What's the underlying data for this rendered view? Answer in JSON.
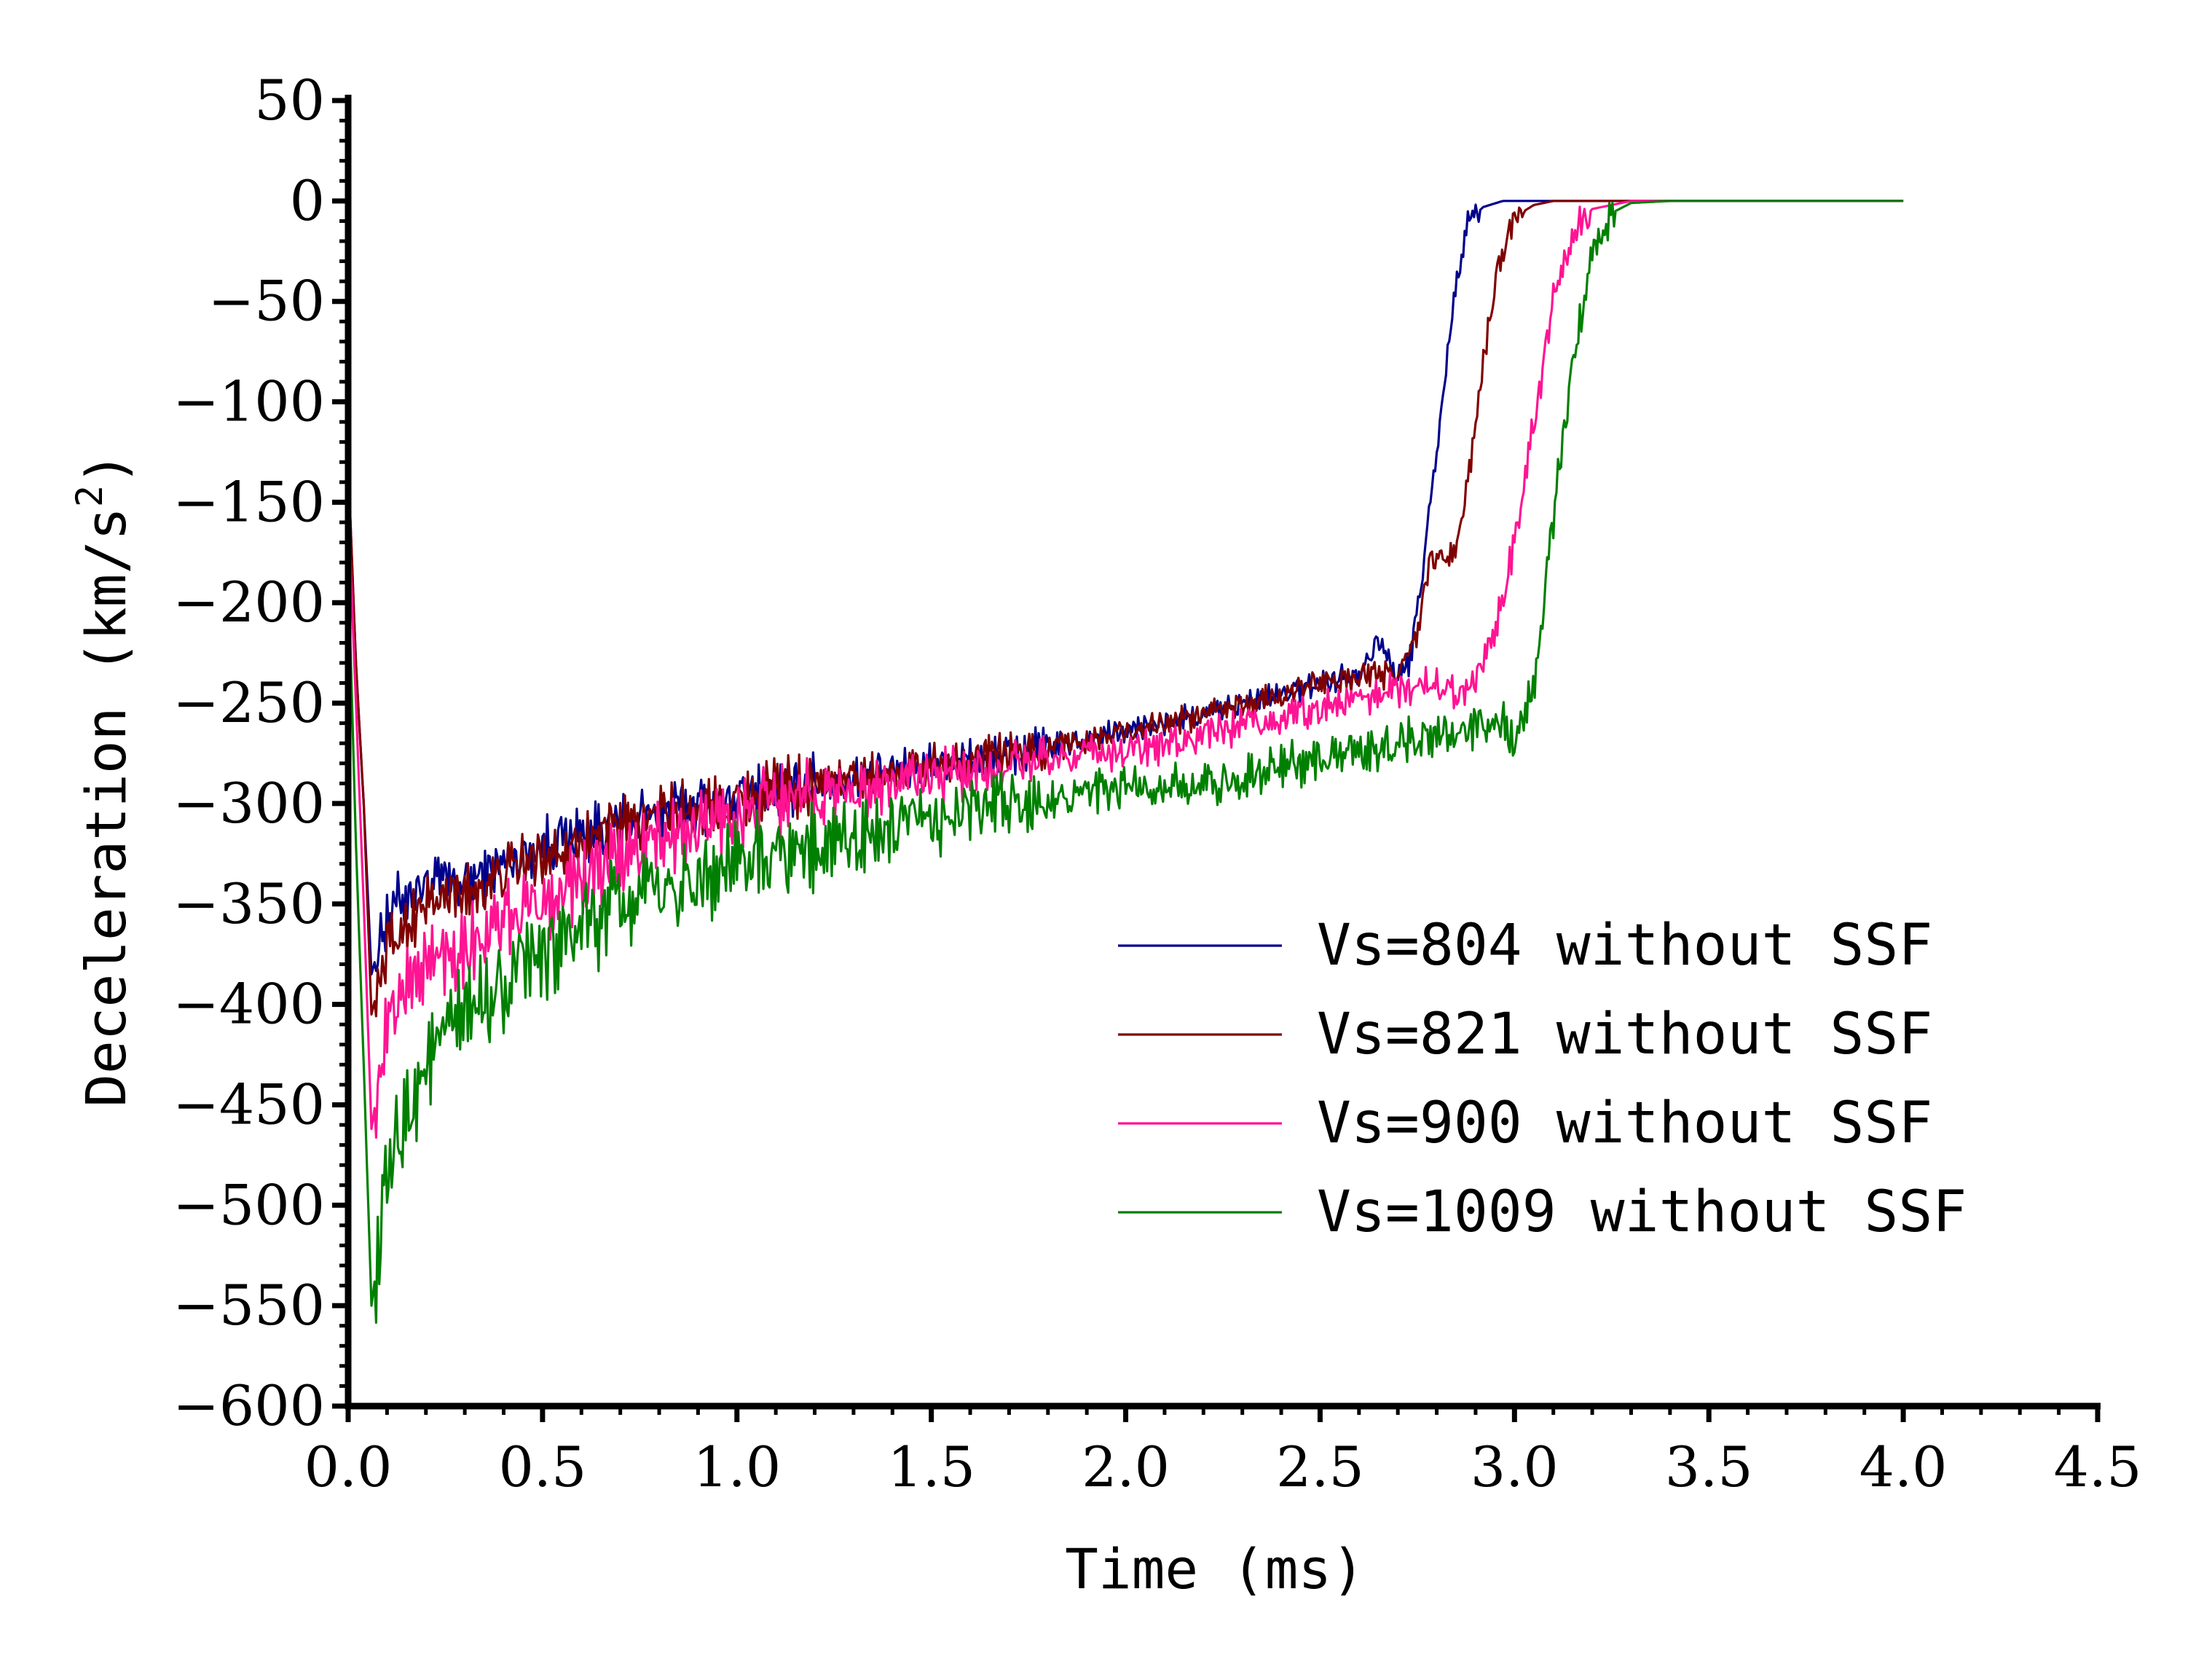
{
  "chart_data": {
    "type": "line",
    "title": "",
    "xlabel": "Time (ms)",
    "ylabel_main": "Deceleration (km/s",
    "ylabel_sup": "2",
    "ylabel_close": ")",
    "xlim": [
      0,
      4.5
    ],
    "ylim": [
      -600,
      50
    ],
    "xticks": [
      0,
      0.5,
      1.0,
      1.5,
      2.0,
      2.5,
      3.0,
      3.5,
      4.0,
      4.5
    ],
    "xtick_labels": [
      "0.0",
      "0.5",
      "1.0",
      "1.5",
      "2.0",
      "2.5",
      "3.0",
      "3.5",
      "4.0",
      "4.5"
    ],
    "yticks": [
      50,
      0,
      -50,
      -100,
      -150,
      -200,
      -250,
      -300,
      -350,
      -400,
      -450,
      -500,
      -550,
      -600
    ],
    "ytick_labels": [
      "50",
      "0",
      "-50",
      "-100",
      "-150",
      "-200",
      "-250",
      "-300",
      "-350",
      "-400",
      "-450",
      "-500",
      "-550",
      "-600"
    ],
    "legend_position": "center-right",
    "series": [
      {
        "name": "Vs=804 without SSF",
        "color": "#00008B",
        "noise": 12,
        "points": [
          [
            0,
            -130
          ],
          [
            0.02,
            -230
          ],
          [
            0.04,
            -300
          ],
          [
            0.06,
            -385
          ],
          [
            0.1,
            -355
          ],
          [
            0.15,
            -345
          ],
          [
            0.2,
            -340
          ],
          [
            0.3,
            -340
          ],
          [
            0.4,
            -330
          ],
          [
            0.5,
            -320
          ],
          [
            0.6,
            -315
          ],
          [
            0.7,
            -310
          ],
          [
            0.8,
            -305
          ],
          [
            0.9,
            -300
          ],
          [
            1.0,
            -298
          ],
          [
            1.1,
            -293
          ],
          [
            1.2,
            -290
          ],
          [
            1.3,
            -287
          ],
          [
            1.4,
            -284
          ],
          [
            1.5,
            -280
          ],
          [
            1.6,
            -278
          ],
          [
            1.7,
            -276
          ],
          [
            1.8,
            -272
          ],
          [
            1.9,
            -268
          ],
          [
            2.0,
            -264
          ],
          [
            2.1,
            -260
          ],
          [
            2.2,
            -256
          ],
          [
            2.3,
            -251
          ],
          [
            2.4,
            -246
          ],
          [
            2.5,
            -240
          ],
          [
            2.6,
            -234
          ],
          [
            2.65,
            -218
          ],
          [
            2.7,
            -238
          ],
          [
            2.73,
            -230
          ],
          [
            2.76,
            -190
          ],
          [
            2.79,
            -140
          ],
          [
            2.82,
            -90
          ],
          [
            2.85,
            -40
          ],
          [
            2.88,
            -10
          ],
          [
            2.92,
            -3
          ],
          [
            2.97,
            0
          ],
          [
            3.05,
            0
          ],
          [
            4.0,
            0
          ]
        ]
      },
      {
        "name": "Vs=821 without SSF",
        "color": "#800000",
        "noise": 12,
        "points": [
          [
            0,
            -130
          ],
          [
            0.02,
            -230
          ],
          [
            0.04,
            -300
          ],
          [
            0.06,
            -405
          ],
          [
            0.1,
            -372
          ],
          [
            0.15,
            -360
          ],
          [
            0.2,
            -350
          ],
          [
            0.3,
            -345
          ],
          [
            0.4,
            -335
          ],
          [
            0.5,
            -325
          ],
          [
            0.6,
            -318
          ],
          [
            0.7,
            -312
          ],
          [
            0.8,
            -306
          ],
          [
            0.9,
            -302
          ],
          [
            1.0,
            -298
          ],
          [
            1.1,
            -293
          ],
          [
            1.2,
            -290
          ],
          [
            1.3,
            -287
          ],
          [
            1.4,
            -284
          ],
          [
            1.5,
            -280
          ],
          [
            1.6,
            -278
          ],
          [
            1.7,
            -276
          ],
          [
            1.8,
            -272
          ],
          [
            1.9,
            -268
          ],
          [
            2.0,
            -264
          ],
          [
            2.1,
            -260
          ],
          [
            2.2,
            -256
          ],
          [
            2.3,
            -251
          ],
          [
            2.4,
            -246
          ],
          [
            2.5,
            -240
          ],
          [
            2.6,
            -236
          ],
          [
            2.7,
            -236
          ],
          [
            2.75,
            -215
          ],
          [
            2.78,
            -180
          ],
          [
            2.85,
            -175
          ],
          [
            2.88,
            -140
          ],
          [
            2.92,
            -80
          ],
          [
            2.96,
            -30
          ],
          [
            3.0,
            -8
          ],
          [
            3.05,
            -2
          ],
          [
            3.1,
            0
          ],
          [
            4.0,
            0
          ]
        ]
      },
      {
        "name": "Vs=900 without SSF",
        "color": "#FF1493",
        "noise": 16,
        "points": [
          [
            0,
            -150
          ],
          [
            0.02,
            -250
          ],
          [
            0.04,
            -350
          ],
          [
            0.06,
            -462
          ],
          [
            0.1,
            -410
          ],
          [
            0.15,
            -390
          ],
          [
            0.2,
            -380
          ],
          [
            0.3,
            -370
          ],
          [
            0.4,
            -360
          ],
          [
            0.5,
            -348
          ],
          [
            0.6,
            -338
          ],
          [
            0.7,
            -328
          ],
          [
            0.8,
            -318
          ],
          [
            0.9,
            -312
          ],
          [
            1.0,
            -305
          ],
          [
            1.1,
            -300
          ],
          [
            1.2,
            -297
          ],
          [
            1.3,
            -293
          ],
          [
            1.4,
            -290
          ],
          [
            1.5,
            -287
          ],
          [
            1.6,
            -284
          ],
          [
            1.7,
            -281
          ],
          [
            1.8,
            -278
          ],
          [
            1.9,
            -276
          ],
          [
            2.0,
            -274
          ],
          [
            2.1,
            -271
          ],
          [
            2.2,
            -266
          ],
          [
            2.3,
            -262
          ],
          [
            2.4,
            -258
          ],
          [
            2.5,
            -252
          ],
          [
            2.6,
            -248
          ],
          [
            2.7,
            -243
          ],
          [
            2.8,
            -240
          ],
          [
            2.85,
            -244
          ],
          [
            2.9,
            -238
          ],
          [
            2.95,
            -215
          ],
          [
            3.0,
            -170
          ],
          [
            3.05,
            -110
          ],
          [
            3.1,
            -50
          ],
          [
            3.15,
            -15
          ],
          [
            3.2,
            -4
          ],
          [
            3.3,
            0
          ],
          [
            4.0,
            0
          ]
        ]
      },
      {
        "name": "Vs=1009 without SSF",
        "color": "#008000",
        "noise": 20,
        "points": [
          [
            0,
            -180
          ],
          [
            0.02,
            -320
          ],
          [
            0.04,
            -430
          ],
          [
            0.06,
            -550
          ],
          [
            0.1,
            -490
          ],
          [
            0.15,
            -455
          ],
          [
            0.2,
            -430
          ],
          [
            0.3,
            -405
          ],
          [
            0.4,
            -390
          ],
          [
            0.5,
            -375
          ],
          [
            0.6,
            -362
          ],
          [
            0.7,
            -352
          ],
          [
            0.8,
            -345
          ],
          [
            0.9,
            -338
          ],
          [
            1.0,
            -332
          ],
          [
            1.1,
            -327
          ],
          [
            1.2,
            -322
          ],
          [
            1.3,
            -318
          ],
          [
            1.4,
            -313
          ],
          [
            1.5,
            -308
          ],
          [
            1.6,
            -304
          ],
          [
            1.7,
            -300
          ],
          [
            1.8,
            -297
          ],
          [
            1.9,
            -295
          ],
          [
            2.0,
            -293
          ],
          [
            2.1,
            -290
          ],
          [
            2.2,
            -292
          ],
          [
            2.3,
            -286
          ],
          [
            2.4,
            -282
          ],
          [
            2.5,
            -278
          ],
          [
            2.6,
            -275
          ],
          [
            2.7,
            -270
          ],
          [
            2.8,
            -265
          ],
          [
            2.9,
            -262
          ],
          [
            2.95,
            -255
          ],
          [
            3.0,
            -270
          ],
          [
            3.05,
            -240
          ],
          [
            3.1,
            -160
          ],
          [
            3.15,
            -80
          ],
          [
            3.2,
            -25
          ],
          [
            3.25,
            -6
          ],
          [
            3.3,
            -1
          ],
          [
            3.4,
            0
          ],
          [
            4.0,
            0
          ]
        ]
      }
    ]
  }
}
